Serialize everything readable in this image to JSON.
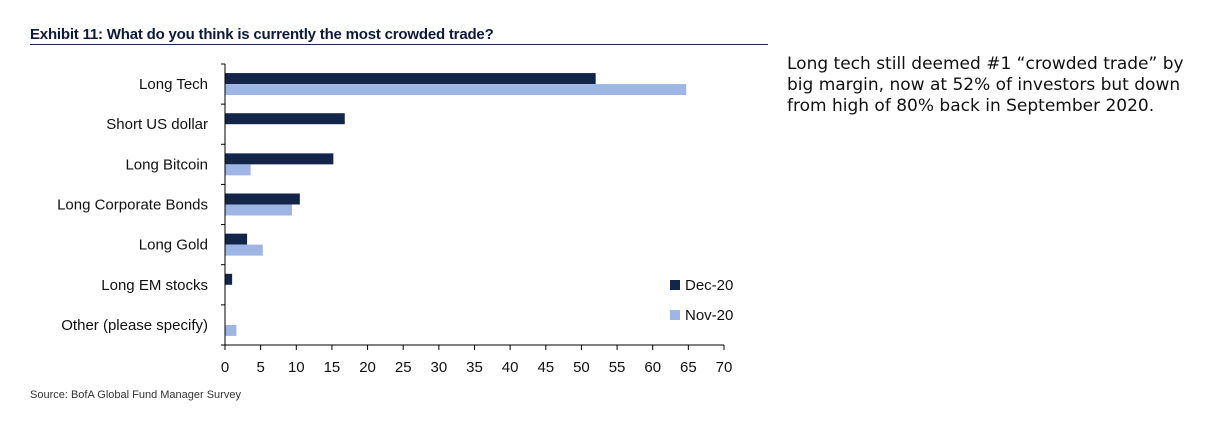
{
  "exhibit_title": "Exhibit 11: What do you think is currently the most crowded trade?",
  "source": "Source: BofA Global Fund Manager Survey",
  "commentary": "Long tech still deemed #1 “crowded trade” by big margin, now at 52% of investors but down from high of 80% back in September 2020.",
  "colors": {
    "dec20": "#14254a",
    "nov20": "#9db6e4",
    "axis": "#000000"
  },
  "chart_data": {
    "type": "bar",
    "orientation": "horizontal",
    "title": "",
    "xlabel": "",
    "ylabel": "",
    "xlim": [
      0,
      70
    ],
    "xticks": [
      0,
      5,
      10,
      15,
      20,
      25,
      30,
      35,
      40,
      45,
      50,
      55,
      60,
      65,
      70
    ],
    "grid": false,
    "legend_position": "bottom-right",
    "categories": [
      "Long Tech",
      "Short US dollar",
      "Long Bitcoin",
      "Long Corporate Bonds",
      "Long Gold",
      "Long EM stocks",
      "Other (please specify)"
    ],
    "series": [
      {
        "name": "Dec-20",
        "color": "#14254a",
        "values": [
          52,
          16.8,
          15.2,
          10.5,
          3.1,
          1.0,
          0
        ]
      },
      {
        "name": "Nov-20",
        "color": "#9db6e4",
        "values": [
          64.7,
          0,
          3.6,
          9.4,
          5.3,
          0,
          1.6
        ]
      }
    ]
  }
}
